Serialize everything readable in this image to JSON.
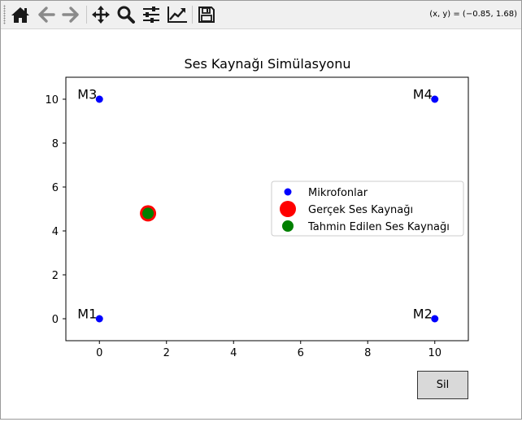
{
  "toolbar": {
    "buttons": [
      {
        "name": "home-icon"
      },
      {
        "name": "back-icon"
      },
      {
        "name": "forward-icon"
      },
      {
        "name": "pan-icon"
      },
      {
        "name": "zoom-icon"
      },
      {
        "name": "configure-subplots-icon"
      },
      {
        "name": "edit-axis-icon"
      },
      {
        "name": "save-icon"
      }
    ],
    "coordinates": "(x, y) = (−0.85, 1.68)"
  },
  "button": {
    "label": "Sil"
  },
  "chart_data": {
    "type": "scatter",
    "title": "Ses Kaynağı Simülasyonu",
    "xlabel": "",
    "ylabel": "",
    "xlim": [
      -1,
      11
    ],
    "ylim": [
      -1,
      11
    ],
    "xticks": [
      0,
      2,
      4,
      6,
      8,
      10
    ],
    "yticks": [
      0,
      2,
      4,
      6,
      8,
      10
    ],
    "grid": false,
    "legend_position": "center-right",
    "series": [
      {
        "name": "Mikrofonlar",
        "color": "#0000ff",
        "marker": "small-circle",
        "points": [
          {
            "x": 0,
            "y": 0,
            "label": "M1"
          },
          {
            "x": 10,
            "y": 0,
            "label": "M2"
          },
          {
            "x": 0,
            "y": 10,
            "label": "M3"
          },
          {
            "x": 10,
            "y": 10,
            "label": "M4"
          }
        ]
      },
      {
        "name": "Gerçek Ses Kaynağı",
        "color": "#ff0000",
        "marker": "large-circle",
        "points": [
          {
            "x": 1.45,
            "y": 4.8
          }
        ]
      },
      {
        "name": "Tahmin Edilen Ses Kaynağı",
        "color": "#008000",
        "marker": "medium-circle",
        "points": [
          {
            "x": 1.45,
            "y": 4.8
          }
        ]
      }
    ]
  }
}
